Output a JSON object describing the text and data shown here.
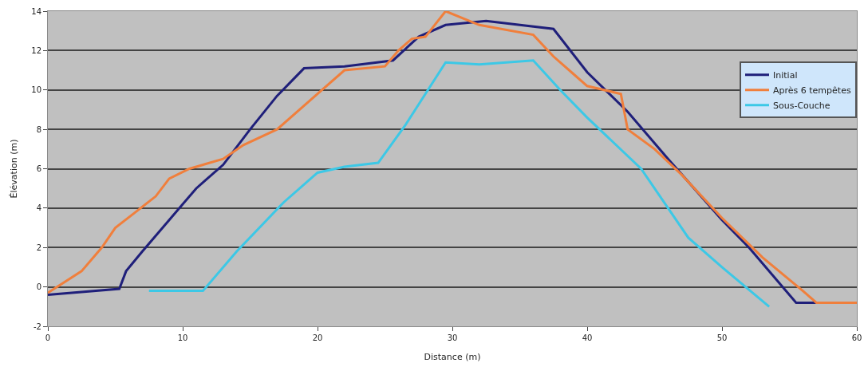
{
  "chart_data": {
    "type": "line",
    "xlabel": "Distance (m)",
    "ylabel": "Élévation (m)",
    "xlim": [
      0,
      60
    ],
    "xticks": [
      0,
      10,
      20,
      30,
      40,
      50,
      60
    ],
    "ylim": [
      -2,
      14
    ],
    "yticks": [
      -2,
      0,
      2,
      4,
      6,
      8,
      10,
      12,
      14
    ],
    "grid": "y",
    "legend": "right",
    "marker": "none",
    "line_style": "solid",
    "series": [
      {
        "name": "Initial",
        "color": "#1f1f7a",
        "x": [
          0,
          5.3,
          5.8,
          7,
          9,
          11,
          13,
          15,
          17,
          19,
          22,
          25.6,
          27.5,
          29.5,
          32.5,
          37.5,
          40,
          43,
          46,
          50,
          52,
          55.5,
          57
        ],
        "values": [
          -0.4,
          -0.1,
          0.8,
          1.8,
          3.4,
          5,
          6.2,
          8,
          9.7,
          11.1,
          11.2,
          11.5,
          12.7,
          13.3,
          13.5,
          13.1,
          10.9,
          8.9,
          6.5,
          3.4,
          2,
          -0.8,
          -0.8
        ]
      },
      {
        "name": "Après 6 tempêtes",
        "color": "#f07f3c",
        "x": [
          0,
          2.5,
          4,
          5,
          6.5,
          8,
          9,
          10.5,
          13,
          14.5,
          17,
          20,
          22,
          25,
          26,
          27,
          28,
          29.5,
          32,
          36,
          37.5,
          39,
          40,
          42.5,
          43,
          45,
          47,
          50,
          53,
          56,
          57,
          60
        ],
        "values": [
          -0.3,
          0.8,
          2,
          3,
          3.8,
          4.6,
          5.5,
          6,
          6.5,
          7.2,
          8,
          9.8,
          11,
          11.2,
          12,
          12.6,
          12.7,
          14,
          13.3,
          12.8,
          11.7,
          10.8,
          10.2,
          9.8,
          8,
          7,
          5.7,
          3.5,
          1.5,
          -0.2,
          -0.8,
          -0.8
        ]
      },
      {
        "name": "Sous-Couche",
        "color": "#3cc8e6",
        "x": [
          7.5,
          11.5,
          14,
          17.5,
          20,
          22,
          24.5,
          26.5,
          29.5,
          32,
          36,
          38,
          40,
          44,
          47.5,
          50,
          53.5
        ],
        "values": [
          -0.2,
          -0.2,
          1.8,
          4.3,
          5.8,
          6.1,
          6.3,
          8.2,
          11.4,
          11.3,
          11.5,
          10,
          8.6,
          6,
          2.5,
          1,
          -1
        ]
      }
    ]
  }
}
